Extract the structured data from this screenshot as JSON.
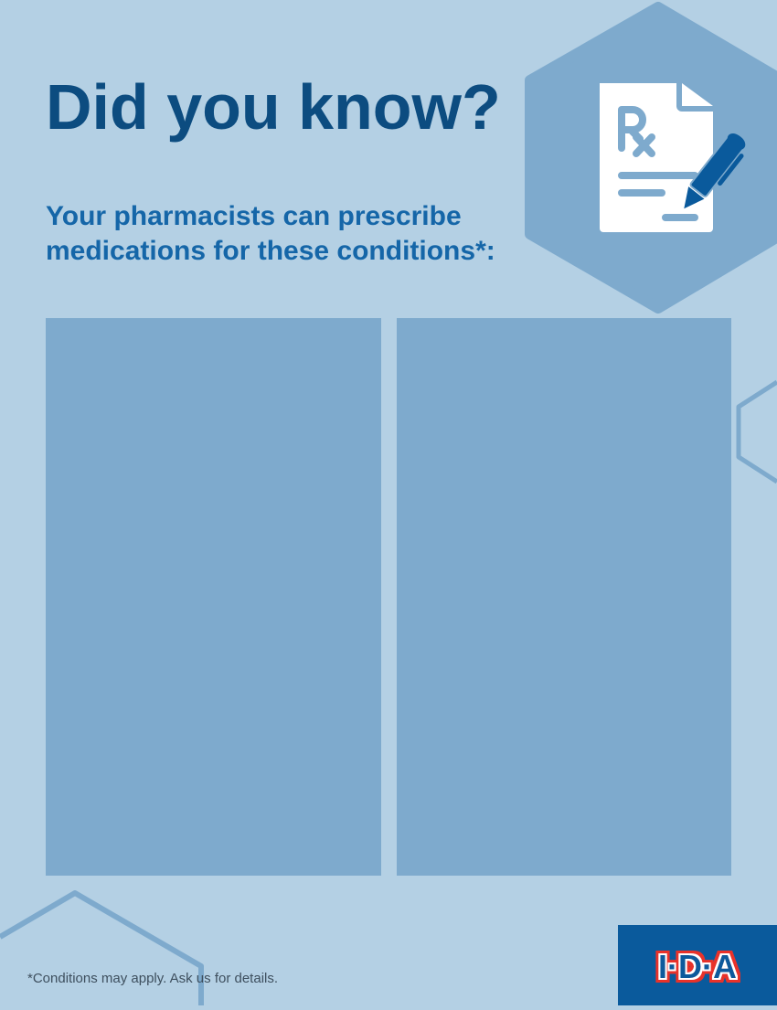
{
  "header": {
    "title": "Did you know?",
    "subtitle_line1": "Your pharmacists can prescribe",
    "subtitle_line2": "medications for these conditions*:"
  },
  "icon": {
    "name": "prescription-document-pen-icon",
    "glyph": "Rx"
  },
  "panels": [
    {
      "content": ""
    },
    {
      "content": ""
    }
  ],
  "footer": {
    "footnote": "*Conditions may apply. Ask us for details.",
    "logo_text": "I·D·A"
  },
  "colors": {
    "background": "#b4d0e4",
    "panel": "#7eaacd",
    "title": "#0c4c80",
    "subtitle": "#1566a8",
    "brand_blue": "#0a5a9c",
    "brand_red": "#e8312a"
  }
}
